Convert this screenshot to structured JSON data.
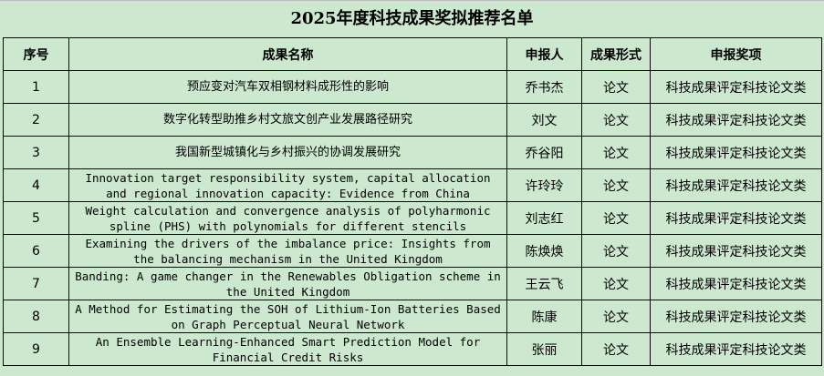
{
  "title": "2025年度科技成果奖拟推荐名单",
  "headers": [
    "序号",
    "成果名称",
    "申报人",
    "成果形式",
    "申报奖项"
  ],
  "rows": [
    {
      "no": "1",
      "name": "预应变对汽车双相钢材料成形性的影响",
      "applicant": "乔书杰",
      "form": "论文",
      "award": "科技成果评定科技论文类",
      "en": false
    },
    {
      "no": "2",
      "name": "数字化转型助推乡村文旅文创产业发展路径研究",
      "applicant": "刘文",
      "form": "论文",
      "award": "科技成果评定科技论文类",
      "en": false
    },
    {
      "no": "3",
      "name": "我国新型城镇化与乡村振兴的协调发展研究",
      "applicant": "乔谷阳",
      "form": "论文",
      "award": "科技成果评定科技论文类",
      "en": false
    },
    {
      "no": "4",
      "name": "Innovation target responsibility system, capital allocation and regional innovation capacity: Evidence from China",
      "applicant": "许玲玲",
      "form": "论文",
      "award": "科技成果评定科技论文类",
      "en": true
    },
    {
      "no": "5",
      "name": "Weight calculation and convergence analysis of polyharmonic spline (PHS) with polynomials for different stencils",
      "applicant": "刘志红",
      "form": "论文",
      "award": "科技成果评定科技论文类",
      "en": true
    },
    {
      "no": "6",
      "name": "Examining the drivers of the imbalance price: Insights from the balancing mechanism in the United Kingdom",
      "applicant": "陈焕焕",
      "form": "论文",
      "award": "科技成果评定科技论文类",
      "en": true
    },
    {
      "no": "7",
      "name": "Banding: A game changer in the Renewables Obligation scheme in the United Kingdom",
      "applicant": "王云飞",
      "form": "论文",
      "award": "科技成果评定科技论文类",
      "en": true
    },
    {
      "no": "8",
      "name": "A Method for Estimating the SOH of Lithium-Ion Batteries Based on Graph Perceptual Neural Network",
      "applicant": "陈康",
      "form": "论文",
      "award": "科技成果评定科技论文类",
      "en": true
    },
    {
      "no": "9",
      "name": "An Ensemble Learning-Enhanced Smart Prediction Model for Financial Credit Risks",
      "applicant": "张丽",
      "form": "论文",
      "award": "科技成果评定科技论文类",
      "en": true
    }
  ]
}
